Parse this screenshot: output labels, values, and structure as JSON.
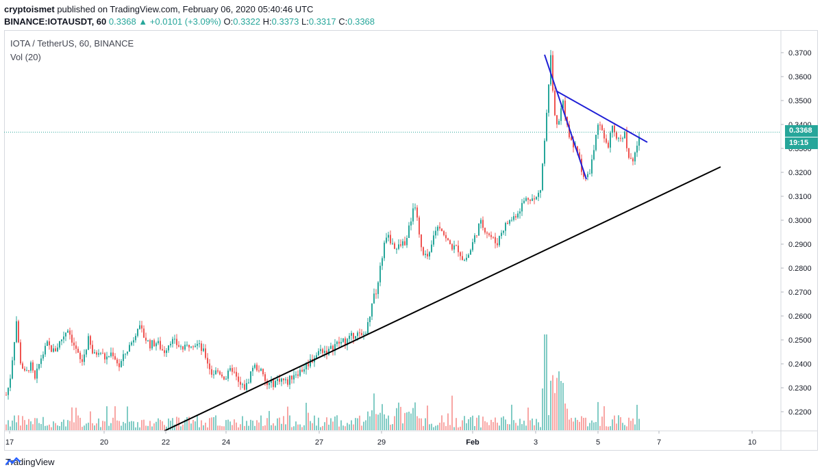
{
  "header": {
    "user": "cryptoismet",
    "published": "published on TradingView.com, February 06, 2020 05:40:46 UTC",
    "symbol": "BINANCE:IOTAUSDT, 60",
    "last": "0.3368",
    "change_arrow": "▲",
    "change": "+0.0101 (+3.09%)",
    "o_label": "O:",
    "o": "0.3322",
    "h_label": "H:",
    "h": "0.3373",
    "l_label": "L:",
    "l": "0.3317",
    "c_label": "C:",
    "c": "0.3368"
  },
  "legend": {
    "title": "IOTA / TetherUS, 60, BINANCE",
    "vol": "Vol (20)"
  },
  "labels": {
    "price": "0.3368",
    "countdown": "19:15"
  },
  "footer": {
    "brand": "TradingView"
  },
  "colors": {
    "up": "#26a69a",
    "down": "#ef5350",
    "up_vol": "#80cbc4",
    "down_vol": "#f8a5a3",
    "trend_black": "#000000",
    "trend_blue": "#1f1fd6",
    "price_line": "#26a69a"
  },
  "chart_data": {
    "type": "candlestick",
    "y_ticks": [
      "0.3700",
      "0.3600",
      "0.3500",
      "0.3400",
      "0.3300",
      "0.3200",
      "0.3100",
      "0.3000",
      "0.2900",
      "0.2800",
      "0.2700",
      "0.2600",
      "0.2500",
      "0.2400",
      "0.2300",
      "0.2200"
    ],
    "ylim": [
      0.2125,
      0.374
    ],
    "x_ticks": [
      "17",
      "20",
      "22",
      "24",
      "27",
      "29",
      "Feb",
      "3",
      "5",
      "7",
      "10"
    ],
    "price_path": [
      [
        0,
        0.227
      ],
      [
        5,
        0.232
      ],
      [
        10,
        0.245
      ],
      [
        15,
        0.258
      ],
      [
        20,
        0.242
      ],
      [
        28,
        0.235
      ],
      [
        35,
        0.24
      ],
      [
        42,
        0.233
      ],
      [
        50,
        0.242
      ],
      [
        60,
        0.248
      ],
      [
        70,
        0.245
      ],
      [
        80,
        0.25
      ],
      [
        90,
        0.255
      ],
      [
        100,
        0.247
      ],
      [
        110,
        0.24
      ],
      [
        120,
        0.25
      ],
      [
        128,
        0.243
      ],
      [
        135,
        0.246
      ],
      [
        145,
        0.242
      ],
      [
        155,
        0.245
      ],
      [
        165,
        0.239
      ],
      [
        175,
        0.245
      ],
      [
        185,
        0.25
      ],
      [
        192,
        0.256
      ],
      [
        200,
        0.252
      ],
      [
        210,
        0.248
      ],
      [
        220,
        0.249
      ],
      [
        230,
        0.245
      ],
      [
        240,
        0.25
      ],
      [
        250,
        0.248
      ],
      [
        260,
        0.246
      ],
      [
        270,
        0.249
      ],
      [
        280,
        0.248
      ],
      [
        290,
        0.244
      ],
      [
        300,
        0.236
      ],
      [
        310,
        0.237
      ],
      [
        320,
        0.234
      ],
      [
        330,
        0.238
      ],
      [
        340,
        0.231
      ],
      [
        350,
        0.23
      ],
      [
        360,
        0.239
      ],
      [
        370,
        0.238
      ],
      [
        380,
        0.231
      ],
      [
        390,
        0.232
      ],
      [
        400,
        0.234
      ],
      [
        410,
        0.232
      ],
      [
        420,
        0.236
      ],
      [
        430,
        0.237
      ],
      [
        440,
        0.24
      ],
      [
        450,
        0.243
      ],
      [
        460,
        0.246
      ],
      [
        470,
        0.245
      ],
      [
        480,
        0.248
      ],
      [
        490,
        0.249
      ],
      [
        500,
        0.25
      ],
      [
        510,
        0.253
      ],
      [
        520,
        0.251
      ],
      [
        528,
        0.256
      ],
      [
        535,
        0.268
      ],
      [
        542,
        0.272
      ],
      [
        548,
        0.284
      ],
      [
        555,
        0.294
      ],
      [
        562,
        0.291
      ],
      [
        570,
        0.288
      ],
      [
        578,
        0.29
      ],
      [
        585,
        0.292
      ],
      [
        592,
        0.302
      ],
      [
        598,
        0.308
      ],
      [
        604,
        0.29
      ],
      [
        610,
        0.284
      ],
      [
        618,
        0.285
      ],
      [
        626,
        0.296
      ],
      [
        634,
        0.298
      ],
      [
        642,
        0.292
      ],
      [
        650,
        0.289
      ],
      [
        660,
        0.288
      ],
      [
        668,
        0.283
      ],
      [
        676,
        0.286
      ],
      [
        684,
        0.293
      ],
      [
        692,
        0.299
      ],
      [
        700,
        0.296
      ],
      [
        708,
        0.293
      ],
      [
        716,
        0.29
      ],
      [
        724,
        0.296
      ],
      [
        732,
        0.299
      ],
      [
        740,
        0.301
      ],
      [
        748,
        0.304
      ],
      [
        756,
        0.308
      ],
      [
        764,
        0.31
      ],
      [
        772,
        0.308
      ],
      [
        780,
        0.313
      ],
      [
        786,
        0.334
      ],
      [
        791,
        0.355
      ],
      [
        795,
        0.368
      ],
      [
        800,
        0.345
      ],
      [
        806,
        0.338
      ],
      [
        812,
        0.351
      ],
      [
        818,
        0.34
      ],
      [
        824,
        0.333
      ],
      [
        830,
        0.33
      ],
      [
        836,
        0.327
      ],
      [
        842,
        0.319
      ],
      [
        848,
        0.317
      ],
      [
        854,
        0.323
      ],
      [
        860,
        0.333
      ],
      [
        866,
        0.341
      ],
      [
        872,
        0.334
      ],
      [
        878,
        0.33
      ],
      [
        884,
        0.339
      ],
      [
        890,
        0.333
      ],
      [
        896,
        0.334
      ],
      [
        902,
        0.337
      ],
      [
        908,
        0.328
      ],
      [
        914,
        0.323
      ],
      [
        920,
        0.33
      ],
      [
        926,
        0.3368
      ]
    ],
    "volume_hint": "volume bars at bottom panel, Vol (20)"
  }
}
